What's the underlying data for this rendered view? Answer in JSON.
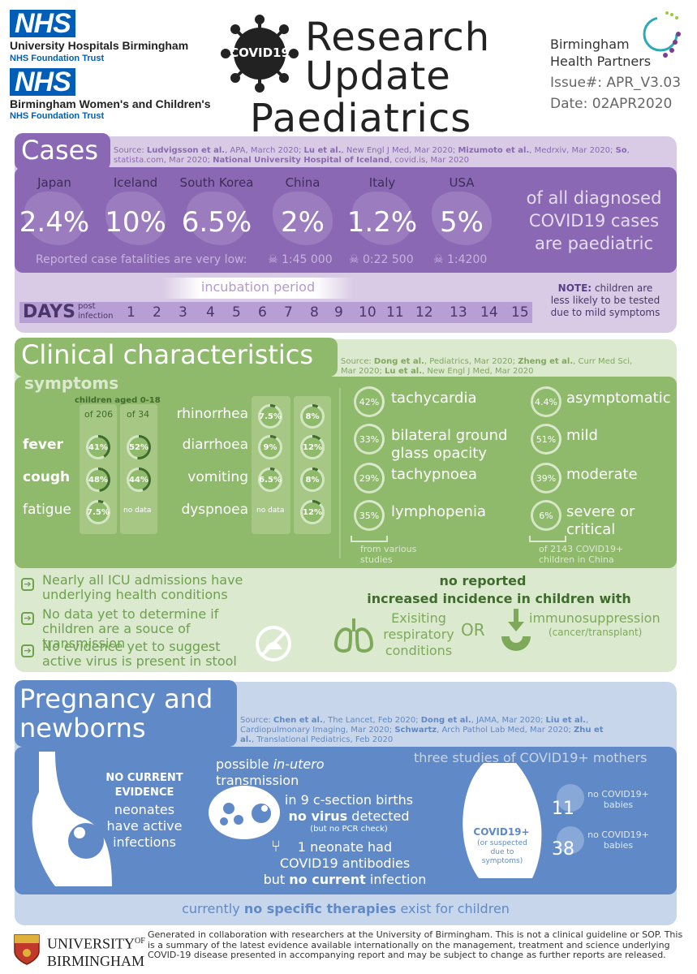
{
  "header": {
    "nhs1": "NHS",
    "org1": "University Hospitals Birmingham",
    "trust1": "NHS Foundation Trust",
    "nhs2": "NHS",
    "org2": "Birmingham Women's and Children's",
    "trust2": "NHS Foundation Trust",
    "virus_label": "COVID19",
    "title_lines": [
      "Research",
      "Update",
      "Paediatrics"
    ],
    "partner_line1": "Birmingham",
    "partner_line2": "Health Partners",
    "issue": "Issue#: APR_V3.03",
    "date": "Date: 02APR2020"
  },
  "cases": {
    "heading": "Cases",
    "source_html": "Source: <b>Ludvigsson et al.</b>, APA, March 2020; <b>Lu et al.</b>, New Engl J Med, Mar 2020; <b>Mizumoto et al.</b>, Medrxiv, Mar 2020; <b>So</b>, statista.com, Mar 2020; <b>National University Hospital of Iceland</b>, covid.is, Mar 2020",
    "countries": [
      {
        "name": "Japan",
        "pct": "2.4%"
      },
      {
        "name": "Iceland",
        "pct": "10%"
      },
      {
        "name": "South Korea",
        "pct": "6.5%"
      },
      {
        "name": "China",
        "pct": "2%"
      },
      {
        "name": "Italy",
        "pct": "1.2%"
      },
      {
        "name": "USA",
        "pct": "5%"
      }
    ],
    "summary": [
      "of all diagnosed",
      "COVID19 cases",
      "are paediatric"
    ],
    "fatalities_label": "Reported case fatalities are very low:",
    "fatalities": [
      "1:45 000",
      "0:22 500",
      "1:4200"
    ],
    "incubation_label": "incubation period",
    "days_label": "DAYS",
    "days_sub1": "post",
    "days_sub2": "infection",
    "days": [
      "1",
      "2",
      "3",
      "4",
      "5",
      "6",
      "7",
      "8",
      "9",
      "10",
      "11",
      "12",
      "13",
      "14",
      "15"
    ],
    "note_bold": "NOTE:",
    "note_text1": "children are",
    "note_text2": "less likely to be tested",
    "note_text3": "due to mild symptoms"
  },
  "clinical": {
    "heading": "Clinical characteristics",
    "source_html": "Source: <b>Dong et al.</b>, Pediatrics, Mar 2020; <b>Zheng et al.</b>, Curr Med Sci, Mar 2020; <b>Lu et al.</b>, New Engl J Med, Mar 2020",
    "symptoms_label": "symptoms",
    "children_label": "children aged 0-18",
    "col1_label": "of 206",
    "col2_label": "of 34",
    "left_rows": [
      {
        "name": "fever",
        "v1": "41%",
        "v2": "52%",
        "f1": 0.41,
        "f2": 0.52
      },
      {
        "name": "cough",
        "v1": "48%",
        "v2": "44%",
        "f1": 0.48,
        "f2": 0.44
      },
      {
        "name": "fatigue",
        "v1": "7.5%",
        "v2": "no data",
        "f1": 0.075,
        "f2": 0
      }
    ],
    "mid_rows": [
      {
        "name": "rhinorrhea",
        "v1": "7.5%",
        "v2": "8%",
        "f1": 0.075,
        "f2": 0.08
      },
      {
        "name": "diarrhoea",
        "v1": "9%",
        "v2": "12%",
        "f1": 0.09,
        "f2": 0.12
      },
      {
        "name": "vomiting",
        "v1": "6.5%",
        "v2": "8%",
        "f1": 0.065,
        "f2": 0.08
      },
      {
        "name": "dyspnoea",
        "v1": "no data",
        "v2": "12%",
        "f1": 0,
        "f2": 0.12
      }
    ],
    "right_a": [
      {
        "v": "42%",
        "f": 0.42,
        "label": "tachycardia"
      },
      {
        "v": "33%",
        "f": 0.33,
        "label": "bilateral ground glass opacity"
      },
      {
        "v": "29%",
        "f": 0.29,
        "label": "tachypnoea"
      },
      {
        "v": "35%",
        "f": 0.35,
        "label": "lymphopenia"
      }
    ],
    "right_a_note": "from various studies",
    "right_b": [
      {
        "v": "4.4%",
        "f": 0.044,
        "label": "asymptomatic"
      },
      {
        "v": "51%",
        "f": 0.51,
        "label": "mild"
      },
      {
        "v": "39%",
        "f": 0.39,
        "label": "moderate"
      },
      {
        "v": "6%",
        "f": 0.06,
        "label": "severe or critical"
      }
    ],
    "right_b_note": "of 2143 COVID19+ children in China",
    "bullets": [
      "Nearly all ICU admissions have underlying health conditions",
      "No data yet to determine if children are a souce of transmission",
      "No evidence yet to suggest active virus is present in stool"
    ],
    "no_reported": "no reported",
    "increased": "increased incidence in children with",
    "existing": "Exisiting respiratory conditions",
    "or": "OR",
    "immuno": "immunosuppression",
    "immuno_sub": "(cancer/transplant)"
  },
  "pregnancy": {
    "heading1": "Pregnancy and",
    "heading2": "newborns",
    "source_html": "Source: <b>Chen et al.</b>, The Lancet, Feb 2020; <b>Dong et al.</b>, JAMA, Mar 2020; <b>Liu et al.</b>, Cardiopulmonary Imaging, Mar 2020; <b>Schwartz</b>, Arch Pathol Lab Med, Mar 2020; <b>Zhu et al.</b>, Translational Pediatrics, Feb 2020",
    "no_current": "NO CURRENT",
    "evidence": "EVIDENCE",
    "neonates_text": "neonates have active infections",
    "possible": "possible",
    "in_utero": "in-utero",
    "transmission": "transmission",
    "csection": "in 9 c-section births",
    "no_virus": "no virus",
    "detected": "detected",
    "no_pcr": "(but no PCR check)",
    "neonate_had": "1 neonate had",
    "antibodies": "COVID19 antibodies",
    "but": "but",
    "no_current_bold": "no current",
    "infection": "infection",
    "three_studies": "three studies of COVID19+ mothers",
    "covid_pos": "COVID19+",
    "suspected": "(or suspected due to symptoms)",
    "n1": "11",
    "n2": "38",
    "no_babies": "no COVID19+ babies",
    "therapies_pre": "currently",
    "therapies_bold": "no specific therapies",
    "therapies_post": "exist for children"
  },
  "footer": {
    "uni1": "UNIVERSITY",
    "uni_of": "OF",
    "uni2": "BIRMINGHAM",
    "text": "Generated in collaboration with researchers at the University of Birmingham. This is not a clinical guideline or SOP. This is a summary of the latest evidence available internationally on the management, treatment and science underlying COVID-19 disease presented in accompanying report and may be subject to change as further reports are released."
  },
  "colors": {
    "purple": "#8a68b3",
    "purple_light": "#d9cbe5",
    "green": "#8fb96b",
    "green_light": "#dbe9cf",
    "blue": "#5f8ac7",
    "blue_light": "#c8d6ec",
    "nhs_blue": "#005eb8"
  }
}
